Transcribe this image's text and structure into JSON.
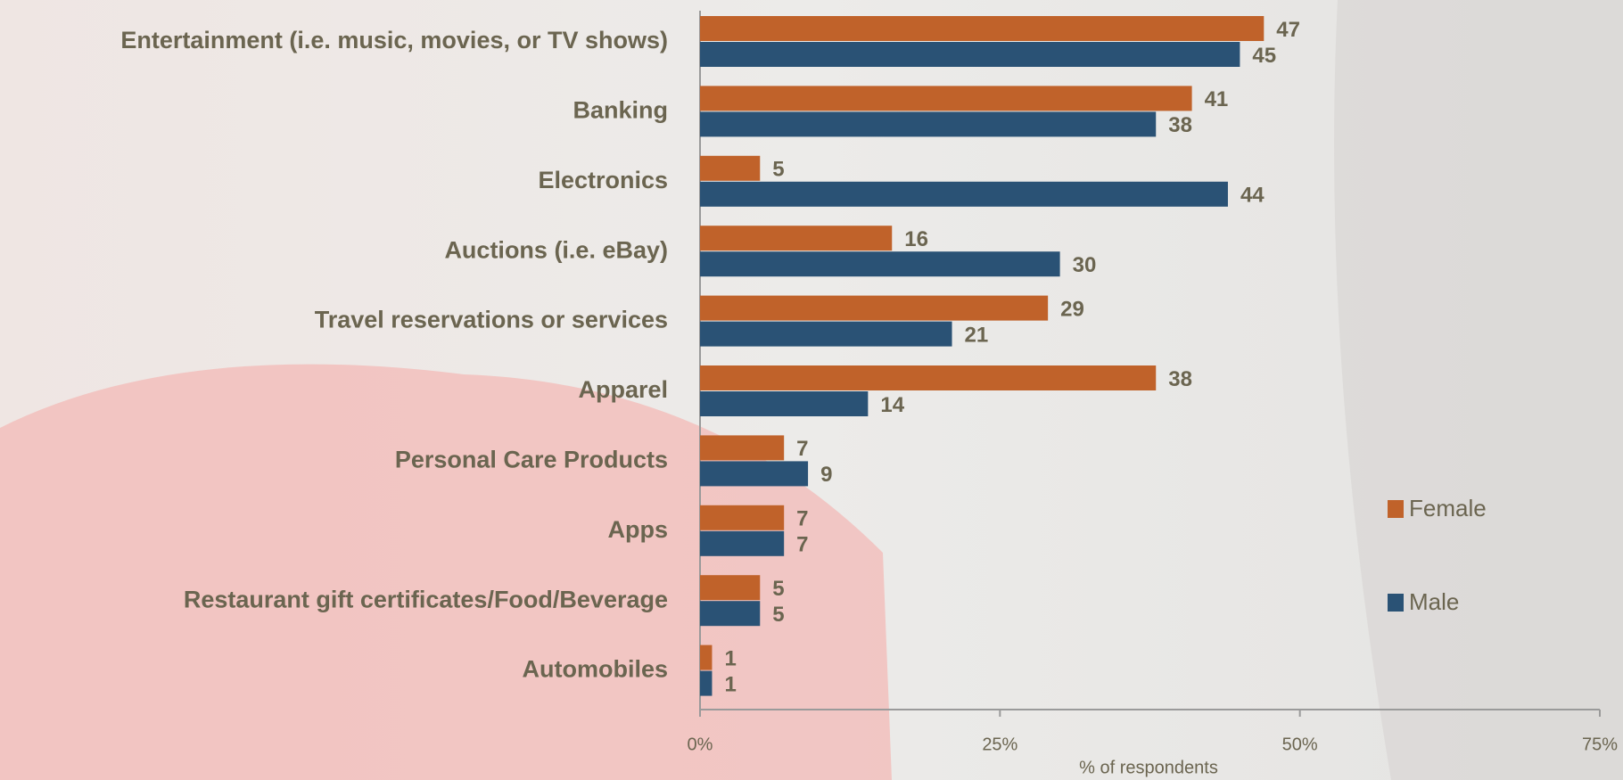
{
  "chart_data": {
    "type": "bar",
    "orientation": "horizontal",
    "categories": [
      "Entertainment (i.e. music, movies, or TV shows)",
      "Banking",
      "Electronics",
      "Auctions (i.e. eBay)",
      "Travel reservations or services",
      "Apparel",
      "Personal Care Products",
      "Apps",
      "Restaurant gift certificates/Food/Beverage",
      "Automobiles"
    ],
    "series": [
      {
        "name": "Female",
        "color": "#c0622a",
        "values": [
          47,
          41,
          5,
          16,
          29,
          38,
          7,
          7,
          5,
          1
        ]
      },
      {
        "name": "Male",
        "color": "#2a5275",
        "values": [
          45,
          38,
          44,
          30,
          21,
          14,
          9,
          7,
          5,
          1
        ]
      }
    ],
    "xlim": [
      0,
      75
    ],
    "xticks": [
      {
        "value": 0,
        "label": "0%"
      },
      {
        "value": 25,
        "label": "25%"
      },
      {
        "value": 50,
        "label": "50%"
      },
      {
        "value": 75,
        "label": "75%"
      }
    ],
    "xlabel": "% of  respondents",
    "legend": "right"
  }
}
